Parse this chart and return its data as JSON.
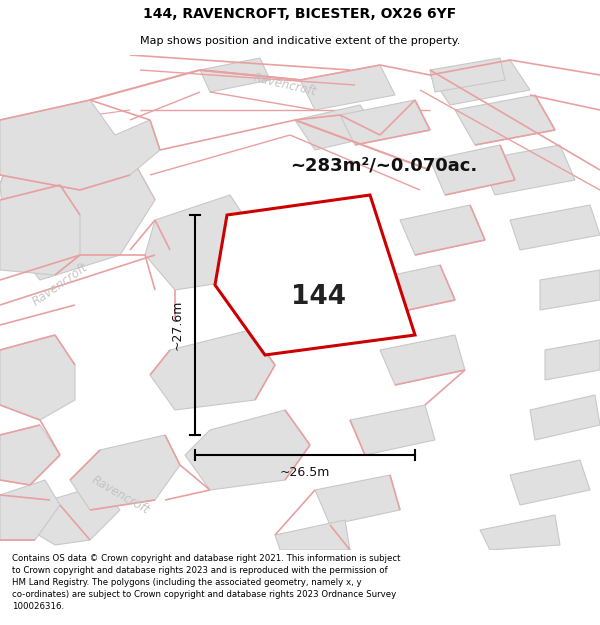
{
  "title_line1": "144, RAVENCROFT, BICESTER, OX26 6YF",
  "title_line2": "Map shows position and indicative extent of the property.",
  "area_label": "~283m²/~0.070ac.",
  "plot_number": "144",
  "dim_height": "~27.6m",
  "dim_width": "~26.5m",
  "copyright_text": "Contains OS data © Crown copyright and database right 2021. This information is subject\nto Crown copyright and database rights 2023 and is reproduced with the permission of\nHM Land Registry. The polygons (including the associated geometry, namely x, y\nco-ordinates) are subject to Crown copyright and database rights 2023 Ordnance Survey\n100026316.",
  "map_bg": "#f2f2f2",
  "plot_color": "#cc0000",
  "road_color": "#f0b8b8",
  "road_edge_color": "#e8a0a0",
  "building_fill": "#e0e0e0",
  "building_edge": "#c8c8c8",
  "road_label_color": "#c0c0c0",
  "dim_color": "#111111",
  "label_color": "#111111"
}
